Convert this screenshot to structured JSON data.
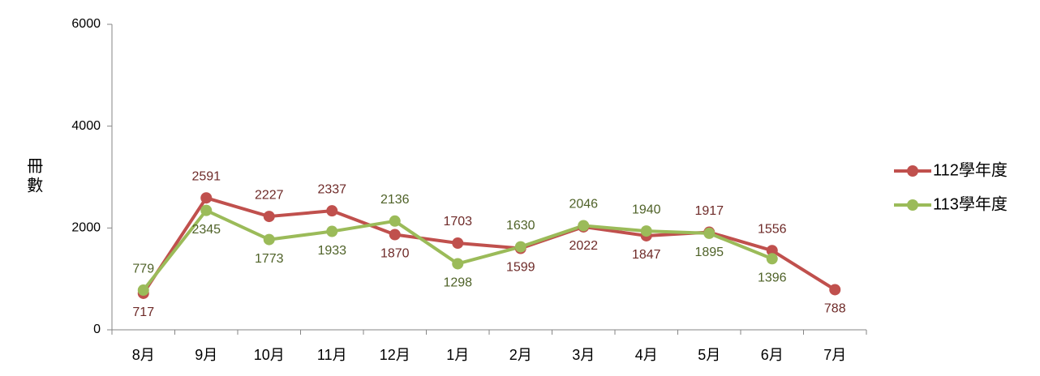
{
  "chart_data": {
    "type": "line",
    "y_label": "冊數",
    "categories": [
      "8月",
      "9月",
      "10月",
      "11月",
      "12月",
      "1月",
      "2月",
      "3月",
      "4月",
      "5月",
      "6月",
      "7月"
    ],
    "series": [
      {
        "name": "112學年度",
        "color": "#c0504d",
        "label_color": "#6e2a28",
        "values": [
          717,
          2591,
          2227,
          2337,
          1870,
          1703,
          1599,
          2022,
          1847,
          1917,
          1556,
          788
        ]
      },
      {
        "name": "113學年度",
        "color": "#9bbb59",
        "label_color": "#4f6228",
        "values": [
          779,
          2345,
          1773,
          1933,
          2136,
          1298,
          1630,
          2046,
          1940,
          1895,
          1396,
          null
        ]
      }
    ],
    "ylim": [
      0,
      6000
    ],
    "yticks": [
      0,
      2000,
      4000,
      6000
    ],
    "grid": false,
    "legend": "right"
  }
}
